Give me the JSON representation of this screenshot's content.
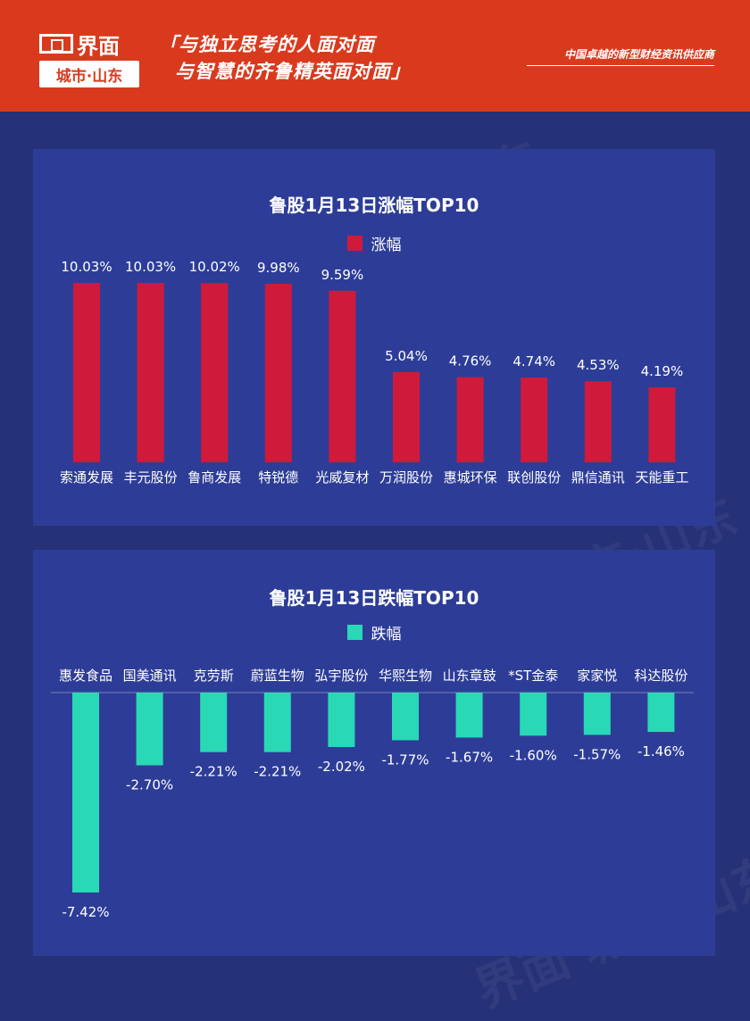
{
  "header": {
    "logo_text": "界面",
    "logo_sub": "城市·山东",
    "slogan_line1": "「与独立思考的人面对面",
    "slogan_line2": "与智慧的齐鲁精英面对面」",
    "tagline": "中国卓越的新型财经资讯供应商"
  },
  "colors": {
    "gain": "#d01a3c",
    "loss": "#29d9b6",
    "panel": "#2d3d97",
    "background": "#253277",
    "header": "#d93a1e"
  },
  "chart_data": [
    {
      "type": "bar",
      "title": "鲁股1月13日涨幅TOP10",
      "series": [
        {
          "name": "涨幅",
          "values": [
            10.03,
            10.03,
            10.02,
            9.98,
            9.59,
            5.04,
            4.76,
            4.74,
            4.53,
            4.19
          ],
          "labels": [
            "10.03%",
            "10.03%",
            "10.02%",
            "9.98%",
            "9.59%",
            "5.04%",
            "4.76%",
            "4.74%",
            "4.53%",
            "4.19%"
          ]
        }
      ],
      "categories": [
        "索通发展",
        "丰元股份",
        "鲁商发展",
        "特锐德",
        "光威复材",
        "万润股份",
        "惠城环保",
        "联创股份",
        "鼎信通讯",
        "天能重工"
      ],
      "ylim": [
        0,
        10.03
      ],
      "legend": "top-center",
      "grid": false
    },
    {
      "type": "bar",
      "title": "鲁股1月13日跌幅TOP10",
      "series": [
        {
          "name": "跌幅",
          "values": [
            -7.42,
            -2.7,
            -2.21,
            -2.21,
            -2.02,
            -1.77,
            -1.67,
            -1.6,
            -1.57,
            -1.46
          ],
          "labels": [
            "-7.42%",
            "-2.70%",
            "-2.21%",
            "-2.21%",
            "-2.02%",
            "-1.77%",
            "-1.67%",
            "-1.60%",
            "-1.57%",
            "-1.46%"
          ]
        }
      ],
      "categories": [
        "惠发食品",
        "国美通讯",
        "克劳斯",
        "蔚蓝生物",
        "弘宇股份",
        "华熙生物",
        "山东章鼓",
        "*ST金泰",
        "家家悦",
        "科达股份"
      ],
      "ylim": [
        -7.42,
        0
      ],
      "legend": "top-center",
      "grid": false
    }
  ]
}
